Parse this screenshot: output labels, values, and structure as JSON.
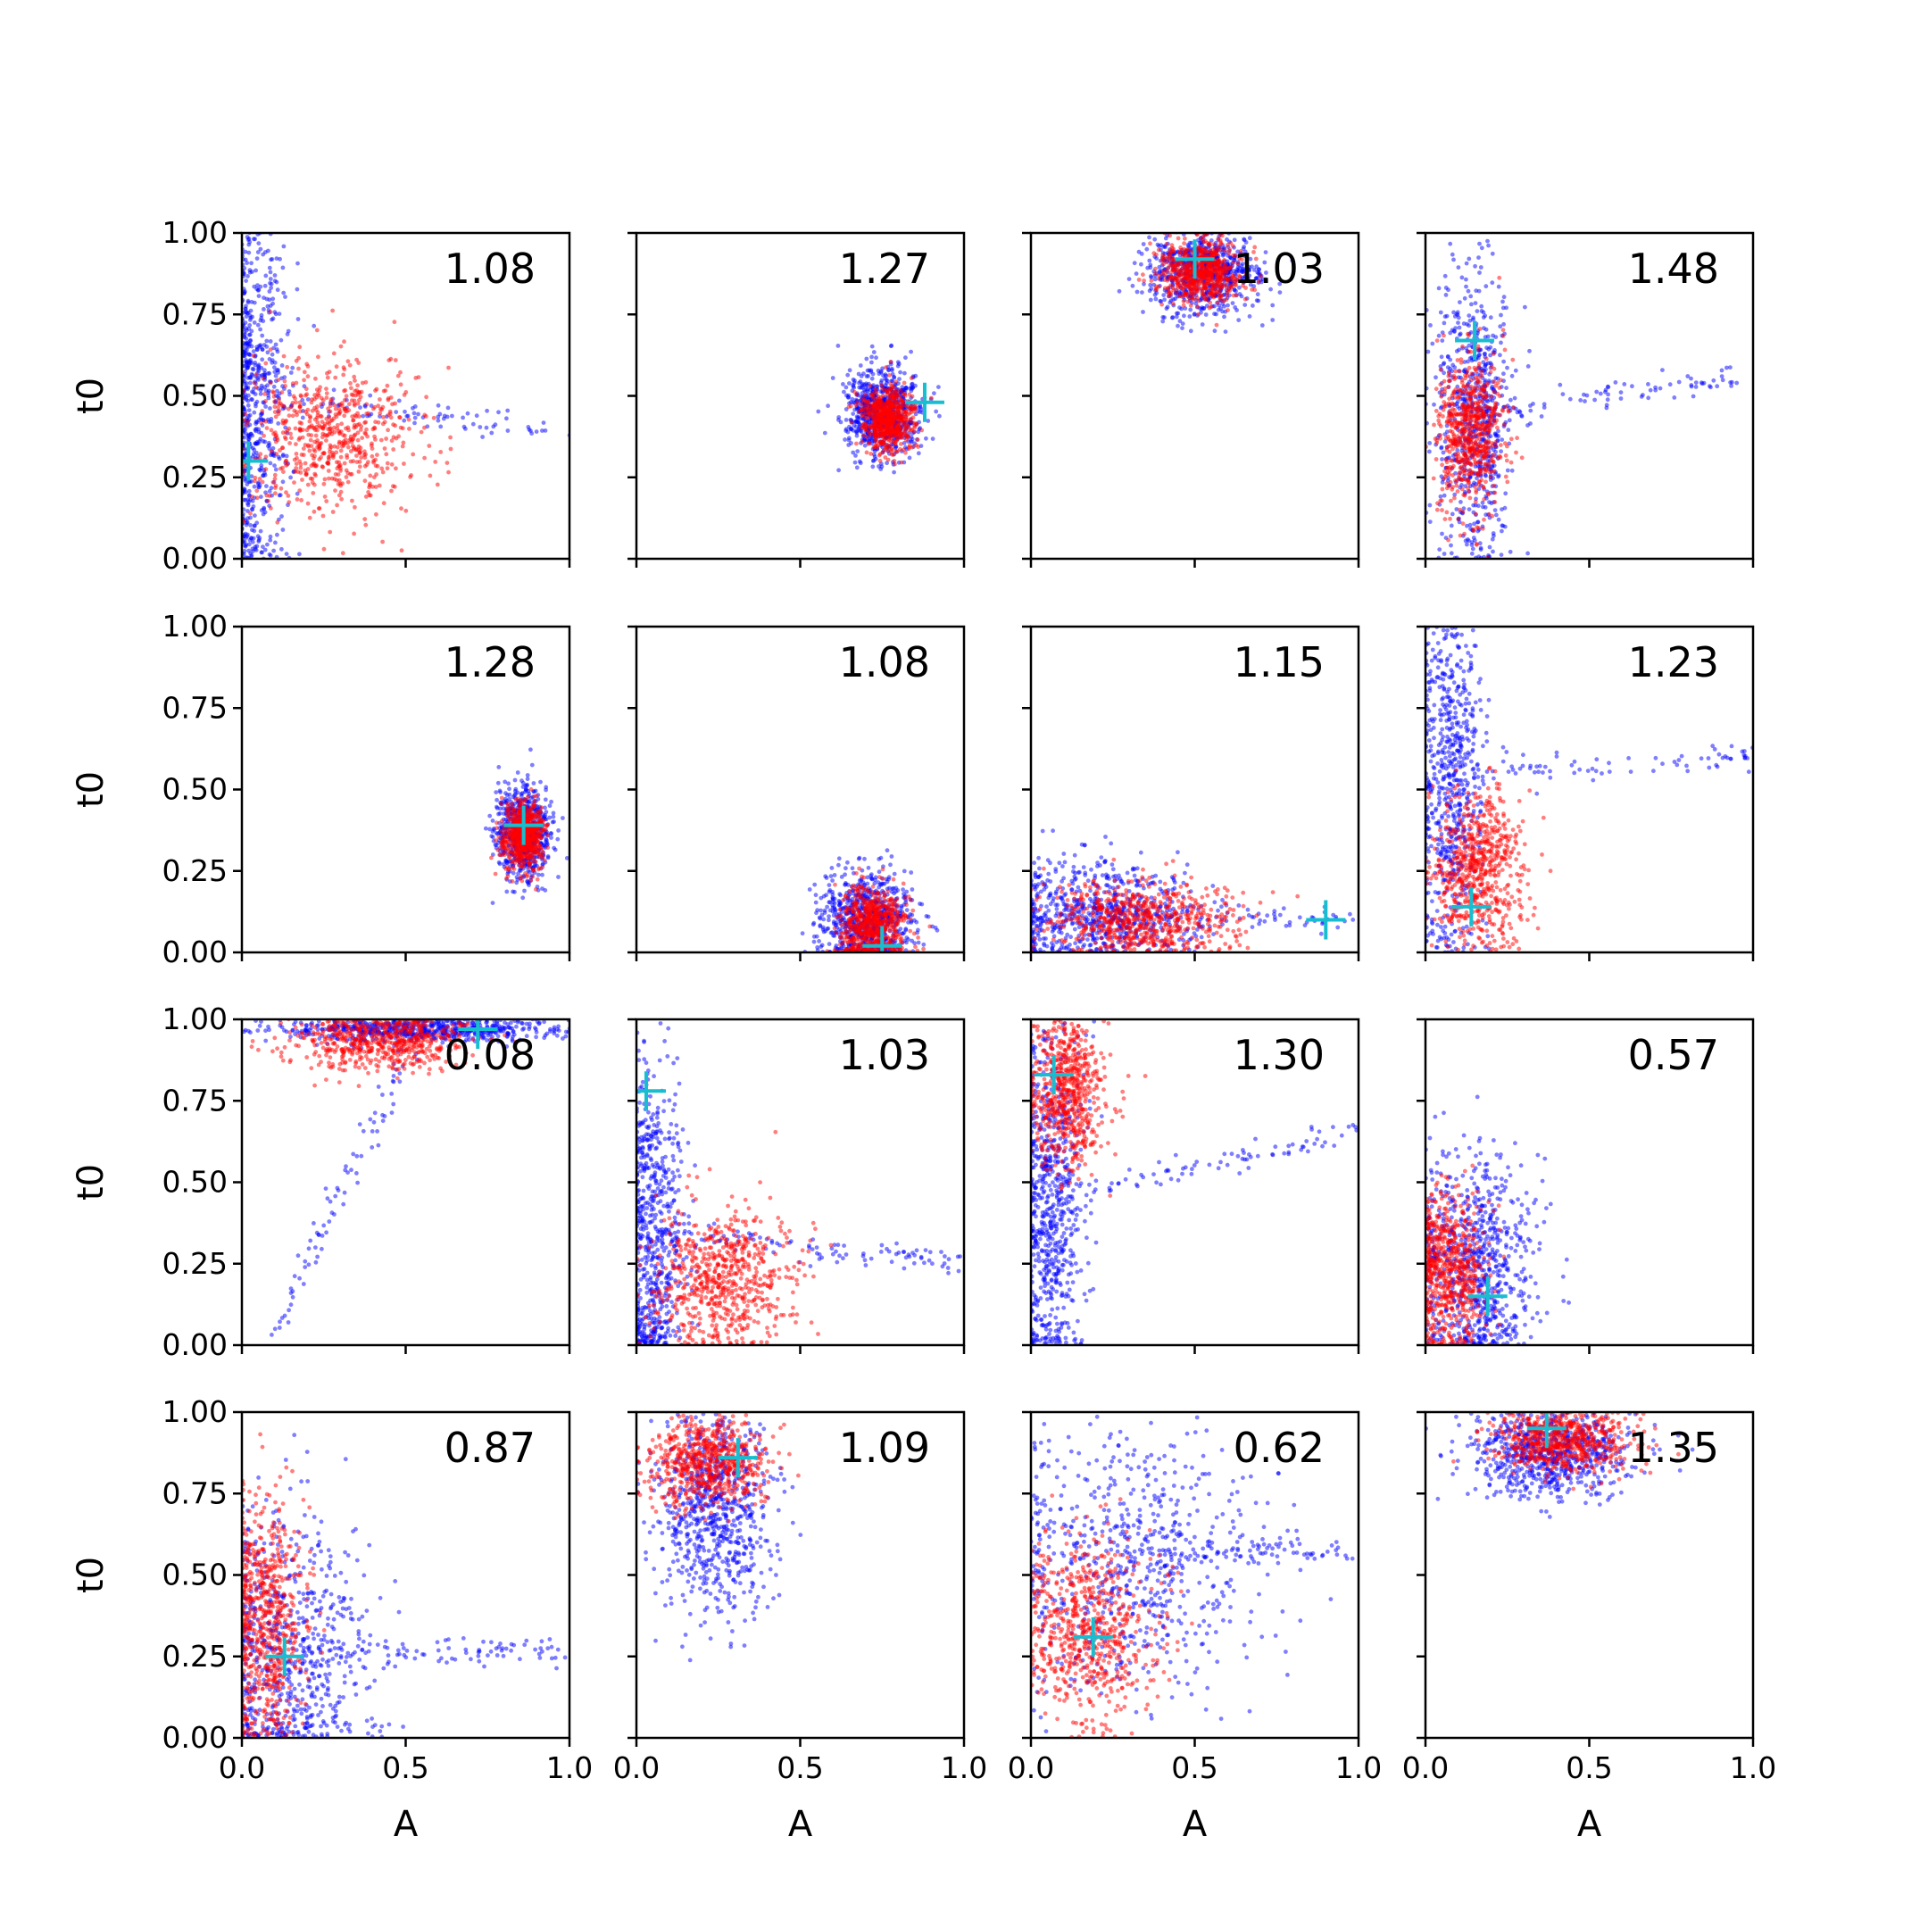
{
  "colors": {
    "posterior_a": "#0000ff",
    "posterior_b": "#ff0000",
    "truth_marker": "#17becf",
    "axes": "#000000"
  },
  "chart_data": {
    "type": "scatter",
    "layout": "4x4 grid",
    "xlabel": "A",
    "ylabel": "t0",
    "xlim": [
      0,
      1
    ],
    "ylim": [
      0,
      1
    ],
    "xticks": [
      "0.0",
      "0.5",
      "1.0"
    ],
    "yticks": [
      "0.00",
      "0.25",
      "0.50",
      "0.75",
      "1.00"
    ],
    "grid": false,
    "panels": [
      {
        "value": "1.08",
        "truth": [
          0.02,
          0.3
        ],
        "blue": {
          "c": [
            0.03,
            0.5
          ],
          "s": [
            0.06,
            0.3
          ],
          "tail": [
            0.95,
            0.4
          ]
        },
        "red": {
          "c": [
            0.28,
            0.38
          ],
          "s": [
            0.12,
            0.12
          ]
        }
      },
      {
        "value": "1.27",
        "truth": [
          0.88,
          0.48
        ],
        "blue": {
          "c": [
            0.75,
            0.45
          ],
          "s": [
            0.06,
            0.07
          ]
        },
        "red": {
          "c": [
            0.77,
            0.43
          ],
          "s": [
            0.04,
            0.05
          ]
        }
      },
      {
        "value": "1.03",
        "truth": [
          0.5,
          0.92
        ],
        "blue": {
          "c": [
            0.52,
            0.88
          ],
          "s": [
            0.09,
            0.07
          ]
        },
        "red": {
          "c": [
            0.52,
            0.88
          ],
          "s": [
            0.06,
            0.05
          ]
        }
      },
      {
        "value": "1.48",
        "truth": [
          0.15,
          0.67
        ],
        "blue": {
          "c": [
            0.15,
            0.45
          ],
          "s": [
            0.06,
            0.22
          ],
          "tail": [
            0.95,
            0.55
          ]
        },
        "red": {
          "c": [
            0.14,
            0.38
          ],
          "s": [
            0.05,
            0.12
          ]
        }
      },
      {
        "value": "1.28",
        "truth": [
          0.86,
          0.39
        ],
        "blue": {
          "c": [
            0.86,
            0.37
          ],
          "s": [
            0.04,
            0.07
          ]
        },
        "red": {
          "c": [
            0.86,
            0.36
          ],
          "s": [
            0.03,
            0.05
          ]
        }
      },
      {
        "value": "1.08",
        "truth": [
          0.75,
          0.02
        ],
        "blue": {
          "c": [
            0.7,
            0.1
          ],
          "s": [
            0.07,
            0.07
          ]
        },
        "red": {
          "c": [
            0.72,
            0.08
          ],
          "s": [
            0.05,
            0.06
          ]
        }
      },
      {
        "value": "1.15",
        "truth": [
          0.9,
          0.1
        ],
        "blue": {
          "c": [
            0.2,
            0.12
          ],
          "s": [
            0.15,
            0.08
          ],
          "tail": [
            1.0,
            0.1
          ]
        },
        "red": {
          "c": [
            0.35,
            0.1
          ],
          "s": [
            0.15,
            0.06
          ]
        }
      },
      {
        "value": "1.23",
        "truth": [
          0.14,
          0.14
        ],
        "blue": {
          "c": [
            0.08,
            0.55
          ],
          "s": [
            0.05,
            0.3
          ],
          "tail": [
            1.0,
            0.6
          ]
        },
        "red": {
          "c": [
            0.16,
            0.25
          ],
          "s": [
            0.07,
            0.12
          ]
        }
      },
      {
        "value": "0.08",
        "truth": [
          0.72,
          0.97
        ],
        "blue": {
          "c": [
            0.55,
            0.97
          ],
          "s": [
            0.22,
            0.02
          ],
          "tail": [
            0.1,
            0.05
          ]
        },
        "red": {
          "c": [
            0.42,
            0.94
          ],
          "s": [
            0.14,
            0.05
          ]
        }
      },
      {
        "value": "1.03",
        "truth": [
          0.03,
          0.78
        ],
        "blue": {
          "c": [
            0.05,
            0.35
          ],
          "s": [
            0.05,
            0.3
          ],
          "tail": [
            1.0,
            0.25
          ]
        },
        "red": {
          "c": [
            0.26,
            0.2
          ],
          "s": [
            0.11,
            0.11
          ]
        }
      },
      {
        "value": "1.30",
        "truth": [
          0.07,
          0.83
        ],
        "blue": {
          "c": [
            0.06,
            0.45
          ],
          "s": [
            0.05,
            0.3
          ],
          "tail": [
            1.0,
            0.65
          ]
        },
        "red": {
          "c": [
            0.12,
            0.78
          ],
          "s": [
            0.06,
            0.12
          ]
        }
      },
      {
        "value": "0.57",
        "truth": [
          0.19,
          0.15
        ],
        "blue": {
          "c": [
            0.15,
            0.25
          ],
          "s": [
            0.09,
            0.18
          ]
        },
        "red": {
          "c": [
            0.07,
            0.22
          ],
          "s": [
            0.06,
            0.12
          ]
        }
      },
      {
        "value": "0.87",
        "truth": [
          0.13,
          0.25
        ],
        "blue": {
          "c": [
            0.15,
            0.25
          ],
          "s": [
            0.12,
            0.22
          ],
          "tail": [
            1.0,
            0.26
          ]
        },
        "red": {
          "c": [
            0.07,
            0.35
          ],
          "s": [
            0.06,
            0.2
          ]
        }
      },
      {
        "value": "1.09",
        "truth": [
          0.31,
          0.86
        ],
        "blue": {
          "c": [
            0.24,
            0.7
          ],
          "s": [
            0.09,
            0.16
          ]
        },
        "red": {
          "c": [
            0.22,
            0.85
          ],
          "s": [
            0.09,
            0.07
          ]
        }
      },
      {
        "value": "0.62",
        "truth": [
          0.19,
          0.31
        ],
        "blue": {
          "c": [
            0.3,
            0.55
          ],
          "s": [
            0.2,
            0.2
          ],
          "tail": [
            1.0,
            0.58
          ]
        },
        "red": {
          "c": [
            0.18,
            0.33
          ],
          "s": [
            0.1,
            0.14
          ]
        }
      },
      {
        "value": "1.35",
        "truth": [
          0.37,
          0.95
        ],
        "blue": {
          "c": [
            0.38,
            0.88
          ],
          "s": [
            0.12,
            0.07
          ]
        },
        "red": {
          "c": [
            0.42,
            0.92
          ],
          "s": [
            0.1,
            0.05
          ]
        }
      }
    ]
  }
}
